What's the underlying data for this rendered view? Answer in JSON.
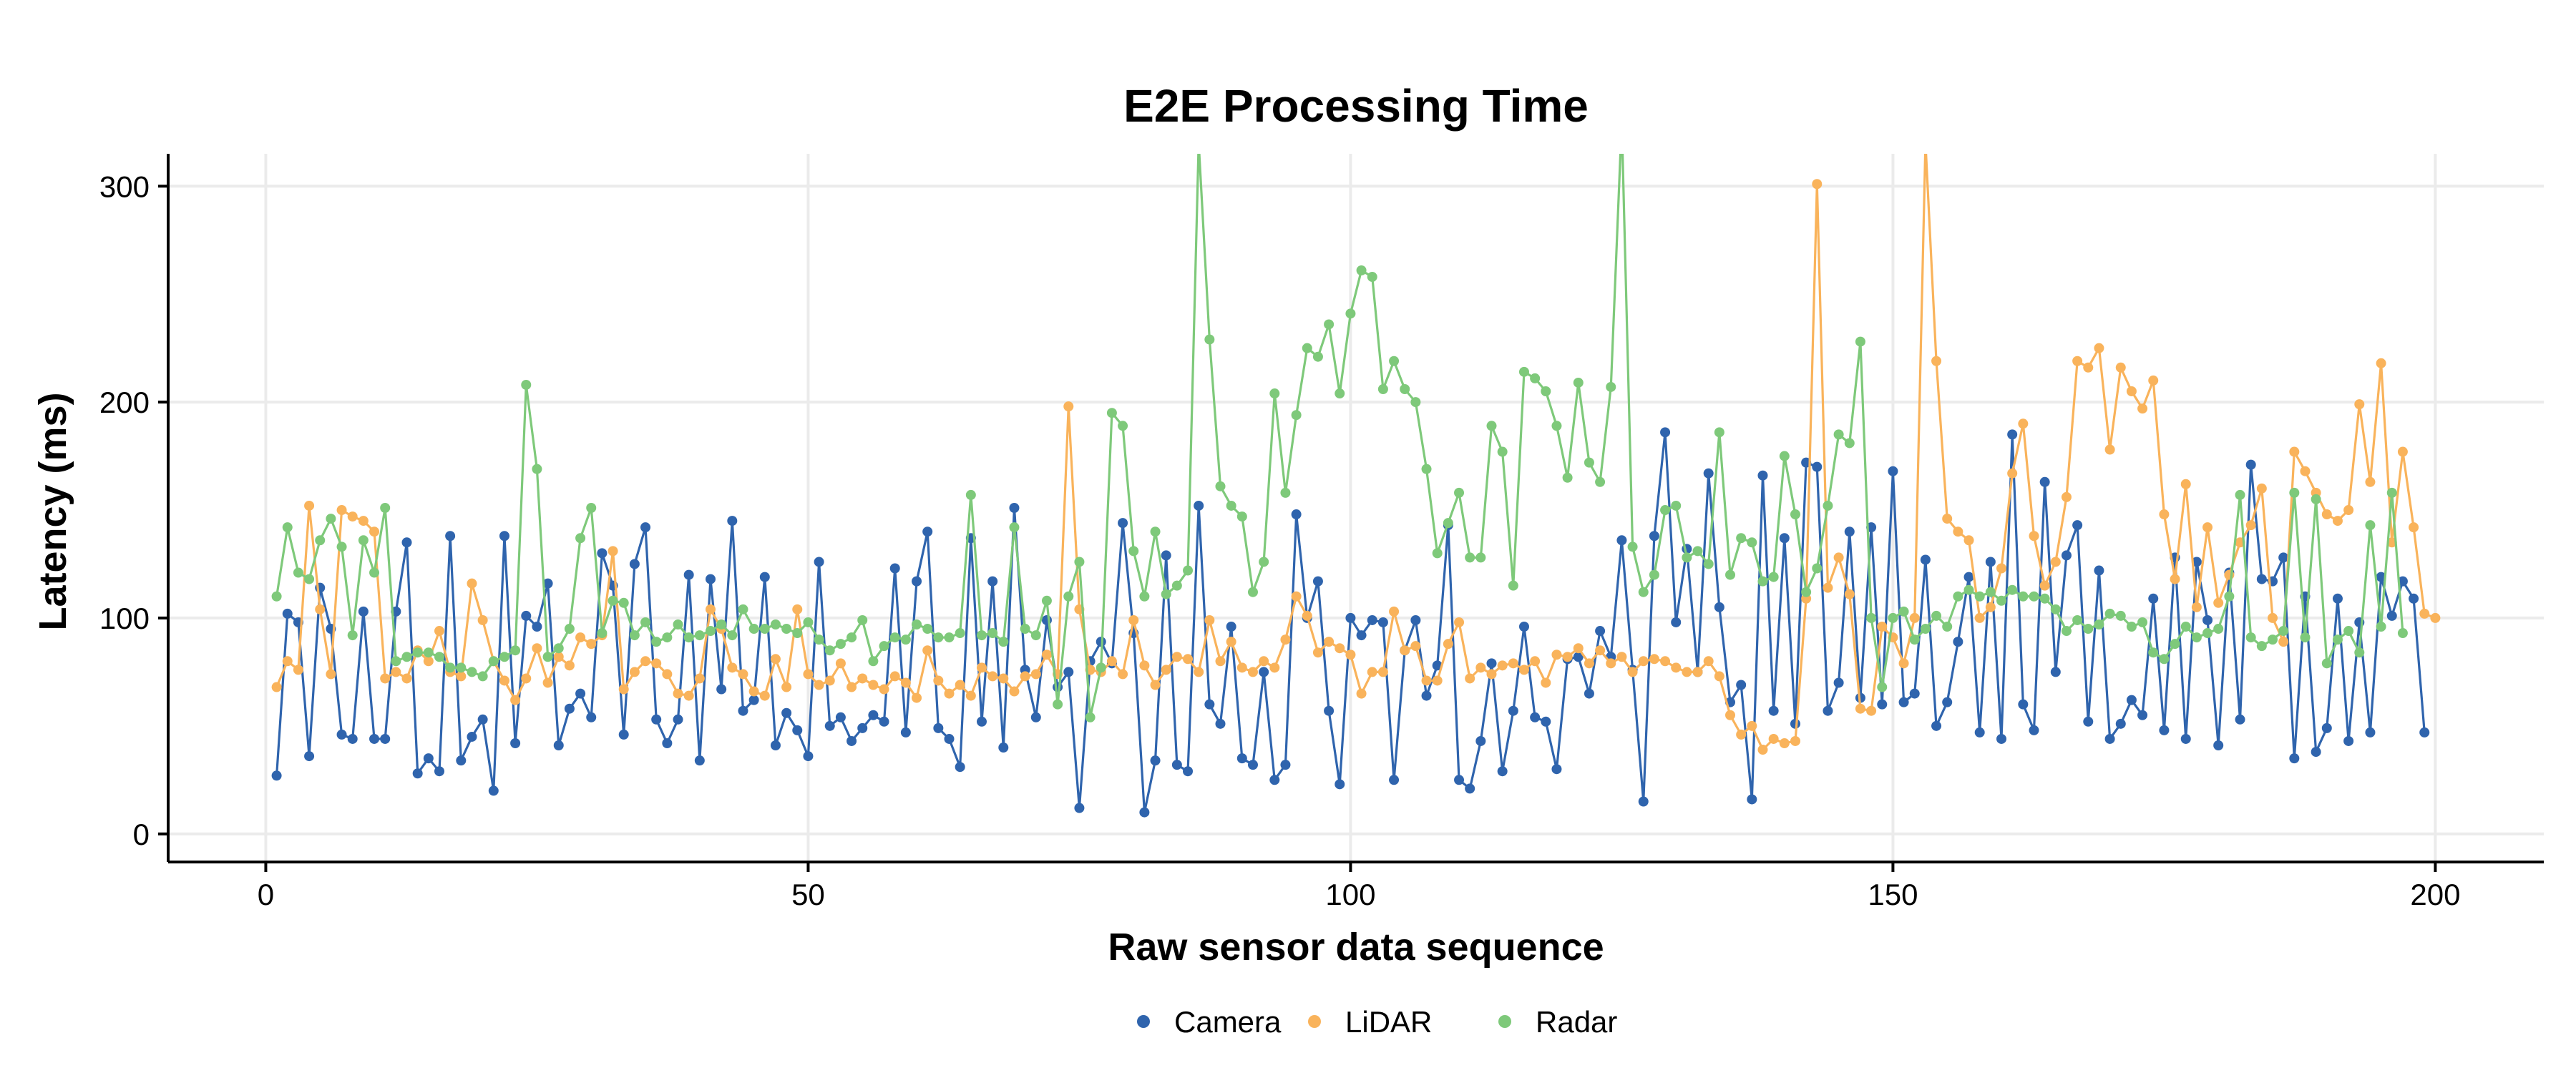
{
  "chart_data": {
    "type": "line",
    "title": "E2E Processing Time",
    "xlabel": "Raw sensor data sequence",
    "ylabel": "Latency (ms)",
    "xlim": [
      -9,
      210
    ],
    "ylim": [
      -13,
      315
    ],
    "x_ticks": [
      0,
      50,
      100,
      150,
      200
    ],
    "y_ticks": [
      0,
      100,
      200,
      300
    ],
    "grid": true,
    "legend_position": "bottom",
    "series": [
      {
        "name": "Camera",
        "color": "#2f64ad",
        "values": [
          27,
          102,
          98,
          36,
          114,
          95,
          46,
          44,
          103,
          44,
          44,
          103,
          135,
          28,
          35,
          29,
          138,
          34,
          45,
          53,
          20,
          138,
          42,
          101,
          96,
          116,
          41,
          58,
          65,
          54,
          130,
          115,
          46,
          125,
          142,
          53,
          42,
          53,
          120,
          34,
          118,
          67,
          145,
          57,
          62,
          119,
          41,
          56,
          48,
          36,
          126,
          50,
          54,
          43,
          49,
          55,
          52,
          123,
          47,
          117,
          140,
          49,
          44,
          31,
          137,
          52,
          117,
          40,
          151,
          76,
          54,
          99,
          68,
          75,
          12,
          80,
          89,
          79,
          144,
          93,
          10,
          34,
          129,
          32,
          29,
          152,
          60,
          51,
          96,
          35,
          32,
          75,
          25,
          32,
          148,
          100,
          117,
          57,
          23,
          100,
          92,
          99,
          98,
          25,
          85,
          99,
          64,
          78,
          143,
          25,
          21,
          43,
          79,
          29,
          57,
          96,
          54,
          52,
          30,
          81,
          82,
          65,
          94,
          82,
          136,
          76,
          15,
          138,
          186,
          98,
          132,
          75,
          167,
          105,
          61,
          69,
          16,
          166,
          57,
          137,
          51,
          172,
          170,
          57,
          70,
          140,
          63,
          142,
          60,
          168,
          61,
          65,
          127,
          50,
          61,
          89,
          119,
          47,
          126,
          44,
          185,
          60,
          48,
          163,
          75,
          129,
          143,
          52,
          122,
          44,
          51,
          62,
          55,
          109,
          48,
          128,
          44,
          126,
          99,
          41,
          121,
          53,
          171,
          118,
          117,
          128,
          35,
          110,
          38,
          49,
          109,
          43,
          98,
          47,
          119,
          101,
          117,
          109,
          47
        ]
      },
      {
        "name": "LiDAR",
        "color": "#f9b35b",
        "values": [
          68,
          80,
          76,
          152,
          104,
          74,
          150,
          147,
          145,
          140,
          72,
          75,
          72,
          85,
          80,
          94,
          75,
          73,
          116,
          99,
          80,
          71,
          62,
          72,
          86,
          70,
          82,
          78,
          91,
          88,
          92,
          131,
          67,
          75,
          80,
          79,
          74,
          65,
          64,
          72,
          104,
          95,
          77,
          74,
          66,
          64,
          81,
          68,
          104,
          74,
          69,
          71,
          79,
          68,
          72,
          69,
          67,
          73,
          70,
          63,
          85,
          71,
          65,
          69,
          64,
          77,
          73,
          72,
          66,
          73,
          74,
          83,
          74,
          198,
          104,
          76,
          75,
          80,
          74,
          99,
          78,
          69,
          76,
          82,
          81,
          75,
          99,
          80,
          89,
          77,
          75,
          80,
          77,
          90,
          110,
          101,
          84,
          89,
          86,
          83,
          65,
          75,
          75,
          103,
          85,
          87,
          71,
          71,
          88,
          98,
          72,
          77,
          74,
          78,
          79,
          76,
          80,
          70,
          83,
          82,
          86,
          79,
          85,
          79,
          82,
          75,
          80,
          81,
          80,
          77,
          75,
          75,
          80,
          73,
          55,
          46,
          50,
          39,
          44,
          42,
          43,
          109,
          301,
          114,
          128,
          111,
          58,
          57,
          96,
          91,
          79,
          100,
          320,
          219,
          146,
          140,
          136,
          100,
          105,
          123,
          167,
          190,
          138,
          115,
          126,
          156,
          219,
          216,
          225,
          178,
          216,
          205,
          197,
          210,
          148,
          118,
          162,
          105,
          142,
          107,
          120,
          135,
          143,
          160,
          100,
          89,
          177,
          168,
          158,
          148,
          145,
          150,
          199,
          163,
          218,
          135,
          177,
          142,
          102,
          100
        ]
      },
      {
        "name": "Radar",
        "color": "#7ec97a",
        "values": [
          110,
          142,
          121,
          118,
          136,
          146,
          133,
          92,
          136,
          121,
          151,
          80,
          82,
          84,
          84,
          82,
          77,
          77,
          75,
          73,
          80,
          82,
          85,
          208,
          169,
          82,
          86,
          95,
          137,
          151,
          93,
          108,
          107,
          92,
          98,
          89,
          91,
          97,
          91,
          92,
          94,
          97,
          92,
          104,
          95,
          95,
          97,
          95,
          93,
          98,
          90,
          85,
          88,
          91,
          99,
          80,
          87,
          91,
          90,
          97,
          95,
          91,
          91,
          93,
          157,
          92,
          93,
          89,
          142,
          95,
          92,
          108,
          60,
          110,
          126,
          54,
          77,
          195,
          189,
          131,
          110,
          140,
          111,
          115,
          122,
          320,
          229,
          161,
          152,
          147,
          112,
          126,
          204,
          158,
          194,
          225,
          221,
          236,
          204,
          241,
          261,
          258,
          206,
          219,
          206,
          200,
          169,
          130,
          144,
          158,
          128,
          128,
          189,
          177,
          115,
          214,
          211,
          205,
          189,
          165,
          209,
          172,
          163,
          207,
          330,
          133,
          112,
          120,
          150,
          152,
          128,
          131,
          125,
          186,
          120,
          137,
          135,
          117,
          119,
          175,
          148,
          112,
          123,
          152,
          185,
          181,
          228,
          100,
          68,
          100,
          103,
          90,
          95,
          101,
          96,
          110,
          113,
          110,
          112,
          108,
          113,
          110,
          110,
          109,
          104,
          94,
          99,
          95,
          97,
          102,
          101,
          96,
          98,
          84,
          81,
          88,
          96,
          91,
          93,
          95,
          110,
          157,
          91,
          87,
          90,
          94,
          158,
          91,
          155,
          79,
          90,
          94,
          84,
          143,
          96,
          158,
          93
        ]
      }
    ]
  }
}
